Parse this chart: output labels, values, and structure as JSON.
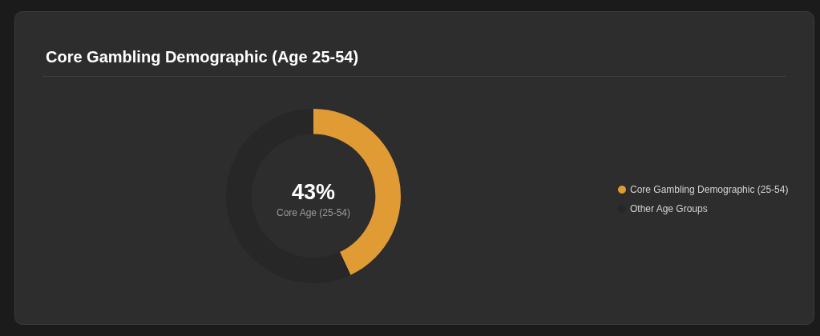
{
  "chart_data": {
    "type": "donut",
    "title": "Core Gambling Demographic (Age 25-54)",
    "categories": [
      "Core Gambling Demographic (25-54)",
      "Other Age Groups"
    ],
    "values": [
      43,
      57
    ],
    "colors": [
      "#e09b35",
      "#272727"
    ],
    "annotations": [
      "43%",
      "Core Age (25-54)"
    ],
    "legend": "right"
  }
}
